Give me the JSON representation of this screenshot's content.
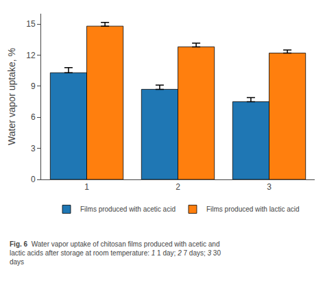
{
  "chart_data": {
    "type": "bar",
    "categories": [
      "1",
      "2",
      "3"
    ],
    "series": [
      {
        "name": "Films produced with acetic acid",
        "values": [
          10.3,
          8.7,
          7.5
        ],
        "errors": [
          0.5,
          0.4,
          0.4
        ]
      },
      {
        "name": "Films produced with lactic acid",
        "values": [
          14.8,
          12.8,
          12.2
        ],
        "errors": [
          0.35,
          0.35,
          0.3
        ]
      }
    ],
    "ylabel": "Water vapor uptake, %",
    "ylim": [
      0,
      16
    ],
    "yticks": [
      0,
      3,
      6,
      9,
      12,
      15
    ],
    "grid": false,
    "legend": "bottom",
    "caption": [
      [
        "Fig. 6",
        "  Water vapor uptake of chitosan films produced with acetic and"
      ],
      [
        "lactic acids after storage at room temperature: ",
        "1",
        " 1 day; ",
        "2",
        " 7 days; ",
        "3",
        " 30"
      ],
      [
        "days"
      ]
    ]
  }
}
